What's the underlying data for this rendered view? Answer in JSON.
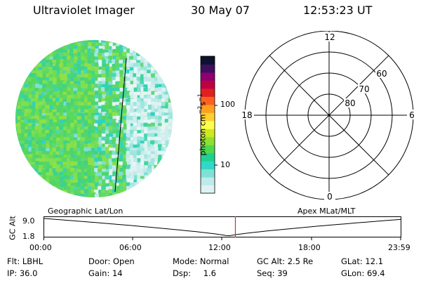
{
  "header": {
    "instrument": "Ultraviolet Imager",
    "date": "30 May 07",
    "time": "12:53:23 UT"
  },
  "colorbar": {
    "unit_label": "photon cm",
    "unit_exp1": "−2",
    "unit_s": "s",
    "unit_exp2": "−1",
    "ticks": [
      {
        "label": "100",
        "value": 100
      },
      {
        "label": "10",
        "value": 10
      }
    ],
    "colors": [
      "#dff2f2",
      "#bfeaea",
      "#7fe0d6",
      "#2fd9c6",
      "#1fd090",
      "#4fd84f",
      "#8fe02f",
      "#cfe81f",
      "#ffff4f",
      "#ffd02f",
      "#ff9f1f",
      "#ff601f",
      "#e02020",
      "#c00040",
      "#8f006f",
      "#3f0f5f",
      "#101030"
    ]
  },
  "polar_grid": {
    "lat_labels": [
      "80",
      "70",
      "60"
    ],
    "mlt_labels": {
      "top": "12",
      "left": "18",
      "right": "6",
      "bottom": "0"
    }
  },
  "timeline": {
    "left_title": "Geographic Lat/Lon",
    "right_title": "Apex MLat/MLT",
    "axis_title": "GC Alt",
    "y_labels": [
      "9.0",
      "1.8"
    ],
    "x_labels": [
      "00:00",
      "06:00",
      "12:00",
      "18:00",
      "23:59"
    ],
    "marker_time": "12:53"
  },
  "info": {
    "row1": [
      {
        "key": "Flt:",
        "val": "LBHL"
      },
      {
        "key": "Door:",
        "val": "Open"
      },
      {
        "key": "Mode:",
        "val": "Normal"
      },
      {
        "key": "GC Alt:",
        "val": "2.5 Re"
      },
      {
        "key": "GLat:",
        "val": "12.1"
      }
    ],
    "row2": [
      {
        "key": "IP:",
        "val": "36.0"
      },
      {
        "key": "Gain:",
        "val": "14"
      },
      {
        "key": "Dsp:",
        "val": "1.6"
      },
      {
        "key": "Seq:",
        "val": "39"
      },
      {
        "key": "GLon:",
        "val": "69.4"
      }
    ]
  }
}
